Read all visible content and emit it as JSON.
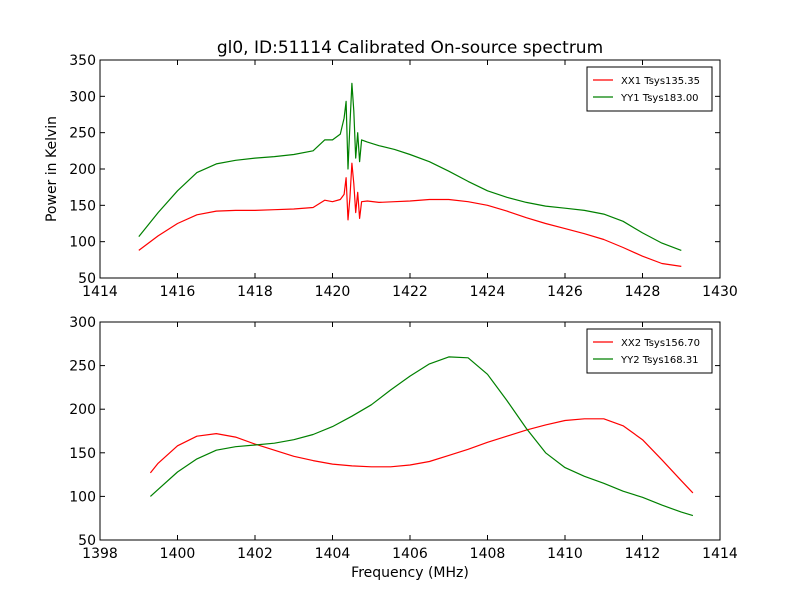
{
  "figure": {
    "title": "gl0, ID:51114 Calibrated On-source spectrum",
    "ylabel": "Power in Kelvin",
    "xlabel": "Frequency (MHz)"
  },
  "chart_data": [
    {
      "type": "line",
      "title": "gl0, ID:51114 Calibrated On-source spectrum",
      "xlabel": "",
      "ylabel": "Power in Kelvin",
      "xlim": [
        1414,
        1430
      ],
      "ylim": [
        50,
        350
      ],
      "xticks": [
        1414,
        1416,
        1418,
        1420,
        1422,
        1424,
        1426,
        1428,
        1430
      ],
      "yticks": [
        50,
        100,
        150,
        200,
        250,
        300,
        350
      ],
      "grid": false,
      "legend": "top-right",
      "series": [
        {
          "name": "XX1 Tsys135.35",
          "color": "#ff0000",
          "x": [
            1415.0,
            1415.5,
            1416.0,
            1416.5,
            1417.0,
            1417.5,
            1418.0,
            1418.5,
            1419.0,
            1419.5,
            1419.8,
            1420.0,
            1420.2,
            1420.3,
            1420.35,
            1420.4,
            1420.45,
            1420.5,
            1420.55,
            1420.6,
            1420.65,
            1420.7,
            1420.75,
            1420.9,
            1421.2,
            1421.6,
            1422.0,
            1422.5,
            1423.0,
            1423.5,
            1424.0,
            1424.5,
            1425.0,
            1425.5,
            1426.0,
            1426.5,
            1427.0,
            1427.5,
            1428.0,
            1428.5,
            1429.0
          ],
          "values": [
            88,
            108,
            125,
            137,
            142,
            143,
            143,
            144,
            145,
            147,
            157,
            155,
            158,
            165,
            188,
            130,
            160,
            208,
            180,
            140,
            168,
            132,
            155,
            156,
            154,
            155,
            156,
            158,
            158,
            155,
            150,
            142,
            133,
            125,
            118,
            111,
            103,
            92,
            80,
            70,
            66
          ]
        },
        {
          "name": "YY1 Tsys183.00",
          "color": "#008000",
          "x": [
            1415.0,
            1415.5,
            1416.0,
            1416.5,
            1417.0,
            1417.5,
            1418.0,
            1418.5,
            1419.0,
            1419.5,
            1419.8,
            1420.0,
            1420.2,
            1420.3,
            1420.35,
            1420.4,
            1420.45,
            1420.5,
            1420.55,
            1420.6,
            1420.65,
            1420.7,
            1420.75,
            1420.9,
            1421.2,
            1421.6,
            1422.0,
            1422.5,
            1423.0,
            1423.5,
            1424.0,
            1424.5,
            1425.0,
            1425.5,
            1426.0,
            1426.5,
            1427.0,
            1427.5,
            1428.0,
            1428.5,
            1429.0
          ],
          "values": [
            107,
            140,
            170,
            195,
            207,
            212,
            215,
            217,
            220,
            225,
            240,
            240,
            248,
            270,
            293,
            200,
            260,
            318,
            280,
            215,
            250,
            210,
            240,
            237,
            232,
            227,
            220,
            210,
            197,
            183,
            170,
            161,
            154,
            149,
            146,
            143,
            138,
            128,
            112,
            98,
            88
          ]
        }
      ]
    },
    {
      "type": "line",
      "title": "",
      "xlabel": "Frequency (MHz)",
      "ylabel": "",
      "xlim": [
        1398,
        1414
      ],
      "ylim": [
        50,
        300
      ],
      "xticks": [
        1398,
        1400,
        1402,
        1404,
        1406,
        1408,
        1410,
        1412,
        1414
      ],
      "yticks": [
        50,
        100,
        150,
        200,
        250,
        300
      ],
      "grid": false,
      "legend": "top-right",
      "series": [
        {
          "name": "XX2 Tsys156.70",
          "color": "#ff0000",
          "x": [
            1399.3,
            1399.5,
            1400.0,
            1400.5,
            1401.0,
            1401.5,
            1402.0,
            1402.5,
            1403.0,
            1403.5,
            1404.0,
            1404.5,
            1405.0,
            1405.5,
            1406.0,
            1406.5,
            1407.0,
            1407.5,
            1408.0,
            1408.5,
            1409.0,
            1409.5,
            1410.0,
            1410.5,
            1411.0,
            1411.5,
            1412.0,
            1412.5,
            1413.0,
            1413.3
          ],
          "values": [
            127,
            138,
            158,
            169,
            172,
            168,
            160,
            153,
            146,
            141,
            137,
            135,
            134,
            134,
            136,
            140,
            147,
            154,
            162,
            169,
            176,
            182,
            187,
            189,
            189,
            181,
            165,
            142,
            118,
            104
          ]
        },
        {
          "name": "YY2 Tsys168.31",
          "color": "#008000",
          "x": [
            1399.3,
            1399.5,
            1400.0,
            1400.5,
            1401.0,
            1401.5,
            1402.0,
            1402.5,
            1403.0,
            1403.5,
            1404.0,
            1404.5,
            1405.0,
            1405.5,
            1406.0,
            1406.5,
            1407.0,
            1407.5,
            1408.0,
            1408.5,
            1409.0,
            1409.5,
            1410.0,
            1410.5,
            1411.0,
            1411.5,
            1412.0,
            1412.5,
            1413.0,
            1413.3
          ],
          "values": [
            100,
            108,
            128,
            143,
            153,
            157,
            159,
            161,
            165,
            171,
            180,
            192,
            205,
            222,
            238,
            252,
            260,
            259,
            240,
            210,
            178,
            150,
            133,
            123,
            115,
            106,
            99,
            90,
            82,
            78
          ]
        }
      ]
    }
  ]
}
